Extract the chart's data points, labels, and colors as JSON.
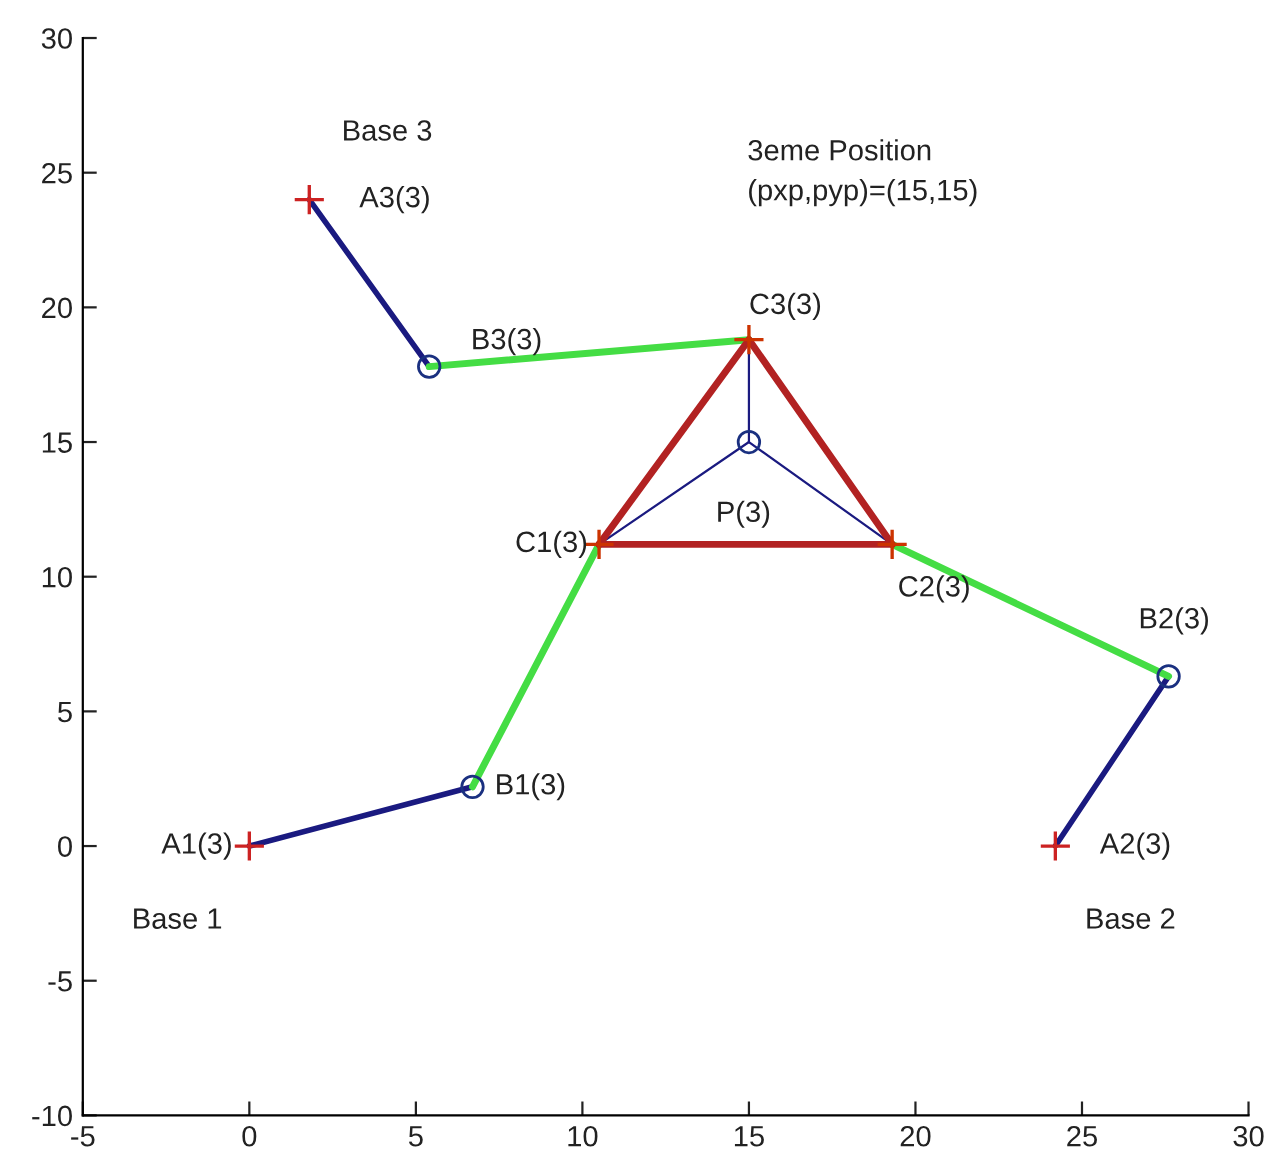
{
  "chart_data": {
    "type": "line",
    "xlim": [
      -5,
      30
    ],
    "ylim": [
      -10,
      30
    ],
    "xticks": [
      -5,
      0,
      5,
      10,
      15,
      20,
      25,
      30
    ],
    "yticks": [
      -10,
      -5,
      0,
      5,
      10,
      15,
      20,
      25,
      30
    ],
    "grid": false,
    "legend": false,
    "series": [
      {
        "color": "#1a1a80",
        "x": [
          0,
          6.7
        ],
        "values": [
          0,
          2.2
        ]
      },
      {
        "color": "#1a1a80",
        "x": [
          24.2,
          27.6
        ],
        "values": [
          0,
          6.3
        ]
      },
      {
        "color": "#1a1a80",
        "x": [
          1.8,
          5.4
        ],
        "values": [
          24.0,
          17.8
        ]
      },
      {
        "color": "#44dd44",
        "x": [
          6.7,
          10.5
        ],
        "values": [
          2.2,
          11.2
        ]
      },
      {
        "color": "#44dd44",
        "x": [
          27.6,
          19.3
        ],
        "values": [
          6.3,
          11.2
        ]
      },
      {
        "color": "#44dd44",
        "x": [
          5.4,
          15.0
        ],
        "values": [
          17.8,
          18.8
        ]
      },
      {
        "color": "#b22222",
        "x": [
          10.5,
          19.3
        ],
        "values": [
          11.2,
          11.2
        ]
      },
      {
        "color": "#b22222",
        "x": [
          19.3,
          15.0
        ],
        "values": [
          11.2,
          18.8
        ]
      },
      {
        "color": "#b22222",
        "x": [
          15.0,
          10.5
        ],
        "values": [
          18.8,
          11.2
        ]
      },
      {
        "color": "#1a1a80",
        "x": [
          15.0,
          10.5
        ],
        "values": [
          15.0,
          11.2
        ]
      },
      {
        "color": "#1a1a80",
        "x": [
          15.0,
          19.3
        ],
        "values": [
          15.0,
          11.2
        ]
      },
      {
        "color": "#1a1a80",
        "x": [
          15.0,
          15.0
        ],
        "values": [
          15.0,
          18.8
        ]
      },
      {
        "type": "scatter",
        "marker": "cross",
        "color": "#cc2222",
        "x": [
          0,
          24.2,
          1.8
        ],
        "values": [
          0,
          0,
          24.0
        ]
      },
      {
        "type": "scatter",
        "marker": "cross",
        "color": "#cc3300",
        "x": [
          10.5,
          19.3,
          15.0
        ],
        "values": [
          11.2,
          11.2,
          18.8
        ]
      },
      {
        "type": "scatter",
        "marker": "circle",
        "color": "#1a3080",
        "x": [
          6.7,
          27.6,
          5.4,
          15.0
        ],
        "values": [
          2.2,
          6.3,
          17.8,
          15.0
        ]
      }
    ],
    "annotations": [
      {
        "text": "A1(3)",
        "x": 0,
        "y": 0
      },
      {
        "text": "Base 1",
        "x": 0,
        "y": 0
      },
      {
        "text": "B1(3)",
        "x": 6.7,
        "y": 2.2
      },
      {
        "text": "C1(3)",
        "x": 10.5,
        "y": 11.2
      },
      {
        "text": "C2(3)",
        "x": 19.3,
        "y": 11.2
      },
      {
        "text": "C3(3)",
        "x": 15.0,
        "y": 18.8
      },
      {
        "text": "P(3)",
        "x": 15.0,
        "y": 15.0
      },
      {
        "text": "A2(3)",
        "x": 24.2,
        "y": 0
      },
      {
        "text": "Base 2",
        "x": 24.2,
        "y": 0
      },
      {
        "text": "B2(3)",
        "x": 27.6,
        "y": 6.3
      },
      {
        "text": "A3(3)",
        "x": 1.8,
        "y": 24.0
      },
      {
        "text": "Base 3",
        "x": 1.8,
        "y": 24.0
      },
      {
        "text": "B3(3)",
        "x": 5.4,
        "y": 17.8
      },
      "3eme Position\n(pxp,pyp)=(15,15)"
    ]
  }
}
